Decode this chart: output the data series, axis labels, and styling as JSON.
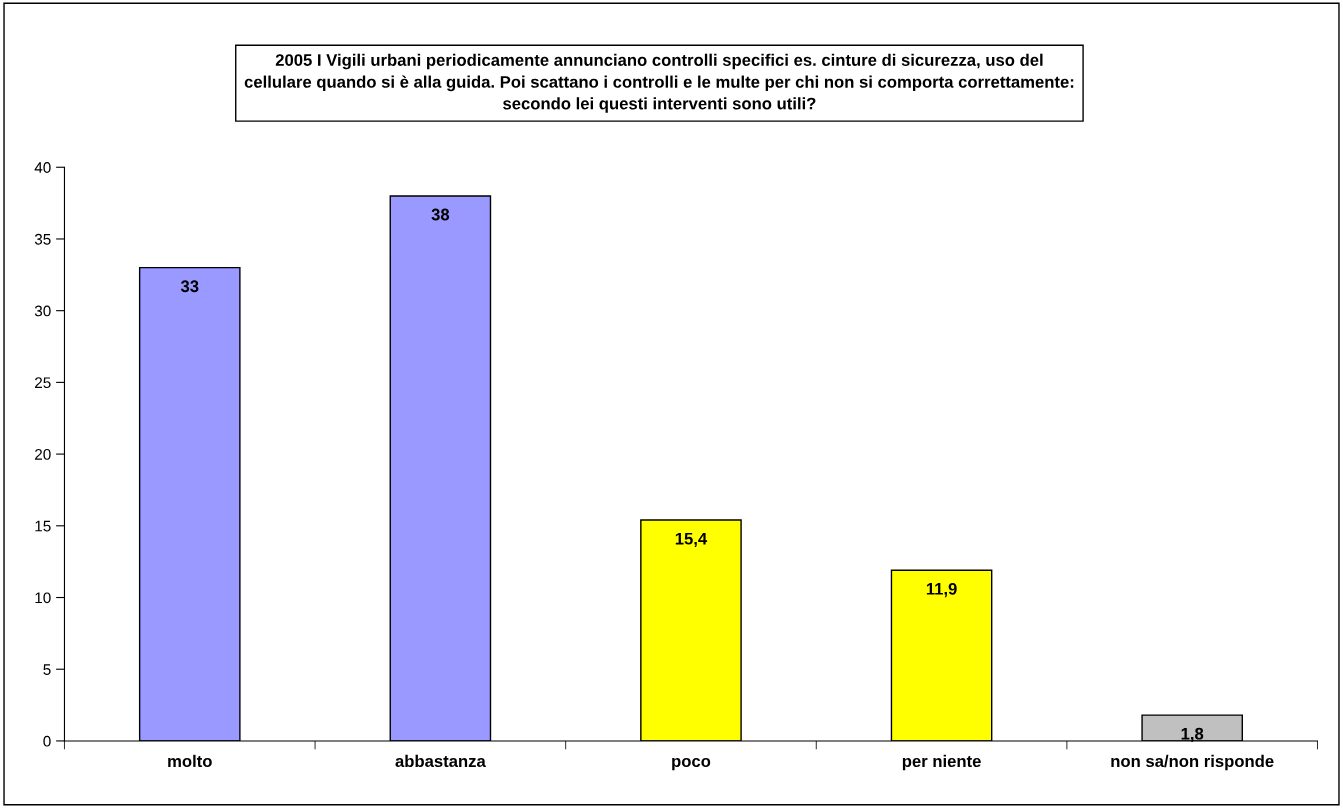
{
  "chart_data": {
    "type": "bar",
    "title": "2005 I Vigili urbani periodicamente annunciano controlli specifici es. cinture di sicurezza, uso del\ncellulare quando si è alla guida. Poi scattano i controlli e le multe per chi non si comporta correttamente:\nsecondo lei questi interventi sono utili?",
    "categories": [
      "molto",
      "abbastanza",
      "poco",
      "per niente",
      "non sa/non risponde"
    ],
    "values": [
      33,
      38,
      15.4,
      11.9,
      1.8
    ],
    "colors": [
      "#9999ff",
      "#9999ff",
      "#ffff00",
      "#ffff00",
      "#c0c0c0"
    ],
    "value_labels": [
      "33",
      "38",
      "15,4",
      "11,9",
      "1,8"
    ],
    "ylim": [
      0,
      40
    ],
    "yticks": [
      0,
      5,
      10,
      15,
      20,
      25,
      30,
      35,
      40
    ],
    "grid": false,
    "legend": false
  }
}
